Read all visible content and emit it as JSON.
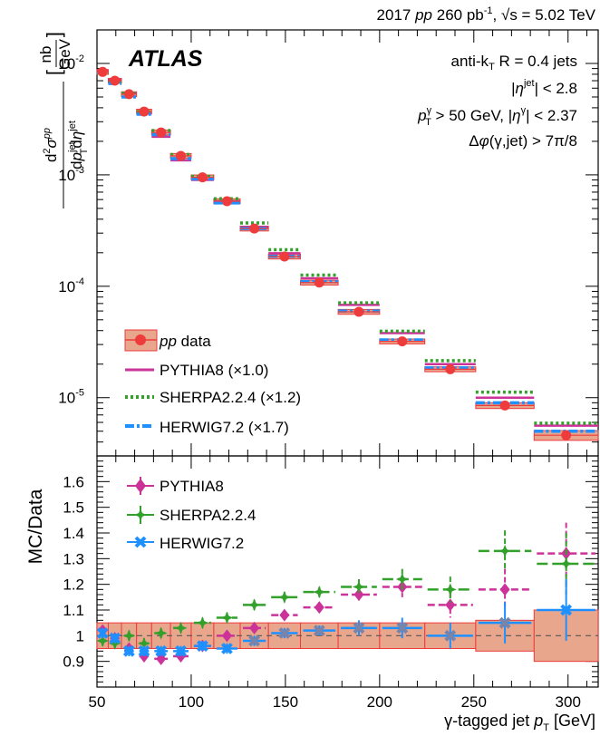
{
  "header": {
    "year": "2017",
    "system": "pp",
    "lumi": "260 pb",
    "lumi_exp": "-1",
    "sqrt_s": "s = 5.02 TeV"
  },
  "atlas_label": "ATLAS",
  "annotations": {
    "jet_algo_pre": "anti-k",
    "jet_algo_sub": "T",
    "jet_algo_post": "R = 0.4 jets",
    "eta_jet_cut": "| < 2.8",
    "photon_pt_cut": "> 50 GeV, |",
    "photon_eta_cut": "| < 2.37",
    "dphi_cut": "(γ,jet) > 7π/8"
  },
  "colors": {
    "data": "#ee3b3b",
    "data_band": "#e8a68d",
    "pythia": "#cc3399",
    "sherpa": "#33a02c",
    "herwig": "#1e90ff",
    "ratio_herwig_marker": "#7a84a8"
  },
  "chart_data": [
    {
      "type": "scatter",
      "name": "spectrum",
      "ylabel": "d²σ^pp / dp_T^jet dη^jet [nb/GeV]",
      "yscale": "log",
      "ylim": [
        3e-06,
        0.02
      ],
      "xlim": [
        50,
        316
      ],
      "yticks": [
        0.01,
        0.001,
        0.0001,
        1e-05
      ],
      "ytick_labels": [
        "10",
        "10",
        "10",
        "10"
      ],
      "ytick_exponents": [
        "-2",
        "-3",
        "-4",
        "-5"
      ],
      "legend": {
        "position": "middle-left",
        "entries": [
          {
            "series": "data",
            "label": "data",
            "prefix": "pp"
          },
          {
            "series": "pythia",
            "label": "PYTHIA8 (×1.0)"
          },
          {
            "series": "sherpa",
            "label": "SHERPA2.2.4 (×1.2)"
          },
          {
            "series": "herwig",
            "label": "HERWIG7.2 (×1.7)"
          }
        ]
      },
      "bins": [
        {
          "lo": 50,
          "hi": 56,
          "data": 0.0084,
          "syst": 0.05,
          "pythia": 0.0086,
          "sherpa": 0.0082,
          "herwig": 0.0083
        },
        {
          "lo": 56,
          "hi": 63,
          "data": 0.007,
          "syst": 0.05,
          "pythia": 0.0071,
          "sherpa": 0.0068,
          "herwig": 0.0066
        },
        {
          "lo": 63,
          "hi": 71,
          "data": 0.0053,
          "syst": 0.05,
          "pythia": 0.0054,
          "sherpa": 0.0054,
          "herwig": 0.005
        },
        {
          "lo": 71,
          "hi": 79,
          "data": 0.0037,
          "syst": 0.05,
          "pythia": 0.0036,
          "sherpa": 0.0037,
          "herwig": 0.0035
        },
        {
          "lo": 79,
          "hi": 89,
          "data": 0.0024,
          "syst": 0.05,
          "pythia": 0.0022,
          "sherpa": 0.0025,
          "herwig": 0.0023
        },
        {
          "lo": 89,
          "hi": 100,
          "data": 0.00148,
          "syst": 0.05,
          "pythia": 0.00135,
          "sherpa": 0.00152,
          "herwig": 0.0014
        },
        {
          "lo": 100,
          "hi": 112,
          "data": 0.00095,
          "syst": 0.05,
          "pythia": 0.0009,
          "sherpa": 0.00097,
          "herwig": 0.00092
        },
        {
          "lo": 112,
          "hi": 126,
          "data": 0.00058,
          "syst": 0.05,
          "pythia": 0.00058,
          "sherpa": 0.00061,
          "herwig": 0.00056
        },
        {
          "lo": 126,
          "hi": 141,
          "data": 0.00033,
          "syst": 0.05,
          "pythia": 0.00034,
          "sherpa": 0.00037,
          "herwig": 0.00033
        },
        {
          "lo": 141,
          "hi": 158,
          "data": 0.000185,
          "syst": 0.05,
          "pythia": 0.000198,
          "sherpa": 0.000213,
          "herwig": 0.000186
        },
        {
          "lo": 158,
          "hi": 178,
          "data": 0.000108,
          "syst": 0.05,
          "pythia": 0.000118,
          "sherpa": 0.000126,
          "herwig": 0.00011
        },
        {
          "lo": 178,
          "hi": 200,
          "data": 5.9e-05,
          "syst": 0.05,
          "pythia": 6.8e-05,
          "sherpa": 7.1e-05,
          "herwig": 6e-05
        },
        {
          "lo": 200,
          "hi": 224,
          "data": 3.2e-05,
          "syst": 0.05,
          "pythia": 3.8e-05,
          "sherpa": 3.95e-05,
          "herwig": 3.3e-05
        },
        {
          "lo": 224,
          "hi": 251,
          "data": 1.8e-05,
          "syst": 0.05,
          "pythia": 2e-05,
          "sherpa": 2.15e-05,
          "herwig": 1.85e-05
        },
        {
          "lo": 251,
          "hi": 282,
          "data": 8.5e-06,
          "syst": 0.06,
          "pythia": 1e-05,
          "sherpa": 1.12e-05,
          "herwig": 9e-06
        },
        {
          "lo": 282,
          "hi": 316,
          "data": 4.6e-06,
          "syst": 0.1,
          "pythia": 5.6e-06,
          "sherpa": 5.9e-06,
          "herwig": 5e-06
        }
      ]
    },
    {
      "type": "scatter",
      "name": "ratio",
      "xlabel": "γ-tagged jet p_T [GeV]",
      "ylabel": "MC/Data",
      "ylim": [
        0.8,
        1.7
      ],
      "xlim": [
        50,
        316
      ],
      "reference_line": 1.0,
      "yticks": [
        0.9,
        1,
        1.1,
        1.2,
        1.3,
        1.4,
        1.5,
        1.6
      ],
      "ytick_labels": [
        "0.9",
        "1",
        "1.1",
        "1.2",
        "1.3",
        "1.4",
        "1.5",
        "1.6"
      ],
      "xticks": [
        50,
        100,
        150,
        200,
        250,
        300
      ],
      "xtick_labels": [
        "50",
        "100",
        "150",
        "200",
        "250",
        "300"
      ],
      "legend": {
        "position": "top-left",
        "entries": [
          {
            "series": "pythia",
            "label": "PYTHIA8"
          },
          {
            "series": "sherpa",
            "label": "SHERPA2.2.4"
          },
          {
            "series": "herwig",
            "label": "HERWIG7.2"
          }
        ]
      },
      "series": [
        {
          "key": "pythia",
          "values": [
            1.02,
            0.99,
            0.95,
            0.92,
            0.91,
            0.92,
            0.96,
            1.0,
            1.03,
            1.08,
            1.11,
            1.16,
            1.19,
            1.12,
            1.18,
            1.32
          ],
          "errors": [
            0.02,
            0.02,
            0.02,
            0.02,
            0.02,
            0.02,
            0.02,
            0.02,
            0.02,
            0.02,
            0.02,
            0.03,
            0.04,
            0.05,
            0.08,
            0.12
          ]
        },
        {
          "key": "sherpa",
          "values": [
            0.98,
            0.97,
            1.0,
            0.97,
            1.01,
            1.03,
            1.05,
            1.07,
            1.12,
            1.15,
            1.17,
            1.19,
            1.22,
            1.18,
            1.33,
            1.28
          ],
          "errors": [
            0.02,
            0.02,
            0.02,
            0.02,
            0.02,
            0.02,
            0.02,
            0.02,
            0.02,
            0.02,
            0.02,
            0.03,
            0.04,
            0.05,
            0.08,
            0.12
          ]
        },
        {
          "key": "herwig",
          "values": [
            1.01,
            0.99,
            0.94,
            0.94,
            0.94,
            0.94,
            0.96,
            0.95,
            0.98,
            1.01,
            1.02,
            1.03,
            1.03,
            1.0,
            1.05,
            1.1
          ],
          "errors": [
            0.02,
            0.02,
            0.02,
            0.02,
            0.02,
            0.02,
            0.02,
            0.02,
            0.02,
            0.02,
            0.02,
            0.03,
            0.04,
            0.05,
            0.08,
            0.12
          ]
        }
      ]
    }
  ]
}
